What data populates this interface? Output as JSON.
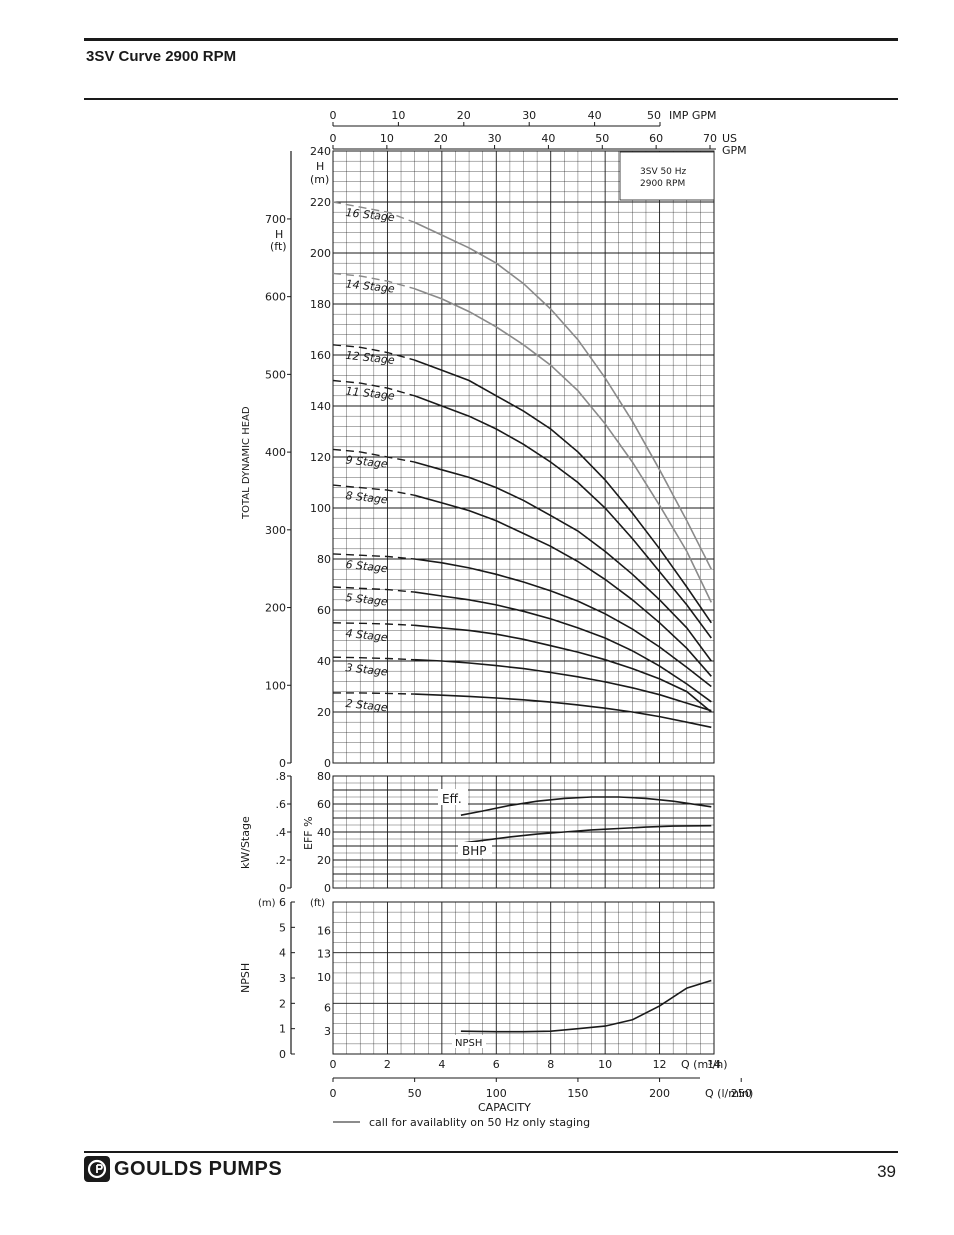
{
  "header": {
    "title": "3SV Curve 2900 RPM"
  },
  "footer": {
    "brand": "GOULDS PUMPS",
    "page_number": "39"
  },
  "chart_data": {
    "type": "line",
    "model_box": {
      "line1": "3SV  50 Hz",
      "line2": "2900 RPM"
    },
    "top_axes": {
      "imp_gpm": {
        "ticks": [
          "0",
          "10",
          "20",
          "30",
          "40",
          "50"
        ],
        "label": "IMP GPM",
        "range": [
          0,
          50
        ]
      },
      "us_gpm": {
        "ticks": [
          "0",
          "10",
          "20",
          "30",
          "40",
          "50",
          "60",
          "70"
        ],
        "label_line1": "US",
        "label_line2": "GPM",
        "range": [
          0,
          70
        ]
      }
    },
    "head_chart": {
      "ylabel_side": "TOTAL DYNAMIC HEAD",
      "y_m": {
        "unit_line1": "H",
        "unit_line2": "(m)",
        "ticks": [
          "0",
          "20",
          "40",
          "60",
          "80",
          "100",
          "120",
          "140",
          "160",
          "180",
          "200",
          "220",
          "240"
        ],
        "range": [
          0,
          240
        ]
      },
      "y_ft": {
        "unit_line1": "H",
        "unit_line2": "(ft)",
        "ticks": [
          "0",
          "100",
          "200",
          "300",
          "400",
          "500",
          "600",
          "700"
        ]
      },
      "x_range_m3h": [
        0,
        14
      ],
      "series": [
        {
          "name": "16 Stage",
          "color": "#8a8a8a",
          "x": [
            0,
            1,
            2,
            3,
            4,
            5,
            6,
            7,
            8,
            9,
            10,
            11,
            12,
            13,
            13.9
          ],
          "y": [
            220,
            218,
            216,
            212,
            207,
            202,
            196,
            188,
            178,
            166,
            151,
            134,
            115,
            95,
            76
          ]
        },
        {
          "name": "14 Stage",
          "color": "#8a8a8a",
          "x": [
            0,
            1,
            2,
            3,
            4,
            5,
            6,
            7,
            8,
            9,
            10,
            11,
            12,
            13,
            13.9
          ],
          "y": [
            192,
            191,
            189,
            186,
            182,
            177,
            171,
            164,
            156,
            146,
            133,
            118,
            101,
            83,
            63
          ]
        },
        {
          "name": "12 Stage",
          "color": "#1a1a1a",
          "x": [
            0,
            1,
            2,
            3,
            4,
            5,
            6,
            7,
            8,
            9,
            10,
            11,
            12,
            13,
            13.9
          ],
          "y": [
            164,
            163,
            161,
            158,
            154,
            150,
            144,
            138,
            131,
            122,
            111,
            98,
            84,
            69,
            55
          ]
        },
        {
          "name": "11 Stage",
          "color": "#1a1a1a",
          "x": [
            0,
            1,
            2,
            3,
            4,
            5,
            6,
            7,
            8,
            9,
            10,
            11,
            12,
            13,
            13.9
          ],
          "y": [
            150,
            149,
            147,
            144,
            140,
            136,
            131,
            125,
            118,
            110,
            100,
            88,
            75,
            62,
            49
          ]
        },
        {
          "name": "9 Stage",
          "color": "#1a1a1a",
          "x": [
            0,
            1,
            2,
            3,
            4,
            5,
            6,
            7,
            8,
            9,
            10,
            11,
            12,
            13,
            13.9
          ],
          "y": [
            123,
            122,
            120,
            118,
            115,
            112,
            108,
            103,
            97,
            91,
            83,
            74,
            64,
            53,
            40
          ]
        },
        {
          "name": "8 Stage",
          "color": "#1a1a1a",
          "x": [
            0,
            1,
            2,
            3,
            4,
            5,
            6,
            7,
            8,
            9,
            10,
            11,
            12,
            13,
            13.9
          ],
          "y": [
            109,
            108,
            107,
            105,
            102,
            99,
            95,
            90,
            85,
            79,
            72,
            64,
            55,
            45,
            34
          ]
        },
        {
          "name": "6 Stage",
          "color": "#1a1a1a",
          "x": [
            0,
            1,
            2,
            3,
            4,
            5,
            6,
            7,
            8,
            9,
            10,
            11,
            12,
            13,
            13.9
          ],
          "y": [
            82,
            81.5,
            81,
            80,
            78.5,
            76.5,
            74,
            71,
            67.5,
            63.5,
            58.5,
            52.5,
            45.5,
            37.5,
            30
          ]
        },
        {
          "name": "5 Stage",
          "color": "#1a1a1a",
          "x": [
            0,
            1,
            2,
            3,
            4,
            5,
            6,
            7,
            8,
            9,
            10,
            11,
            12,
            13,
            13.9
          ],
          "y": [
            69,
            68.5,
            68,
            67,
            65.5,
            64,
            62,
            59.5,
            56.5,
            53,
            49,
            44,
            38,
            31,
            24
          ]
        },
        {
          "name": "4 Stage",
          "color": "#1a1a1a",
          "x": [
            0,
            1,
            2,
            3,
            4,
            5,
            6,
            7,
            8,
            9,
            10,
            11,
            12,
            13,
            13.9
          ],
          "y": [
            55,
            54.8,
            54.5,
            54,
            53,
            52,
            50.5,
            48.5,
            46,
            43.5,
            40.5,
            37,
            33,
            28,
            20
          ]
        },
        {
          "name": "3 Stage",
          "color": "#1a1a1a",
          "x": [
            0,
            1,
            2,
            3,
            4,
            5,
            6,
            7,
            8,
            9,
            10,
            11,
            12,
            13,
            13.9
          ],
          "y": [
            41.5,
            41.3,
            41,
            40.5,
            40,
            39.2,
            38.2,
            37,
            35.5,
            33.8,
            31.8,
            29.5,
            26.8,
            23.5,
            20.5
          ]
        },
        {
          "name": "2 Stage",
          "color": "#1a1a1a",
          "x": [
            0,
            1,
            2,
            3,
            4,
            5,
            6,
            7,
            8,
            9,
            10,
            11,
            12,
            13,
            13.9
          ],
          "y": [
            27.5,
            27.5,
            27.3,
            27,
            26.6,
            26.1,
            25.5,
            24.8,
            23.9,
            22.8,
            21.5,
            20,
            18.2,
            16,
            14
          ]
        }
      ]
    },
    "eff_chart": {
      "y_eff": {
        "label": "EFF %",
        "ticks": [
          "0",
          "20",
          "40",
          "60",
          "80"
        ],
        "range": [
          0,
          80
        ]
      },
      "y_kw": {
        "label": "kW/Stage",
        "ticks": [
          "0",
          ".2",
          ".4",
          ".6",
          ".8"
        ],
        "range": [
          0,
          0.8
        ]
      },
      "series": [
        {
          "name": "Eff.",
          "x": [
            4.7,
            5.5,
            6.5,
            7.5,
            8.5,
            9.5,
            10.5,
            11.5,
            12.5,
            13.9
          ],
          "y": [
            52,
            55,
            59,
            62,
            64,
            65,
            65,
            64,
            62,
            58
          ]
        },
        {
          "name": "BHP",
          "x": [
            4.7,
            5.5,
            6.5,
            7.5,
            8.5,
            9.5,
            10.5,
            11.5,
            12.5,
            13.9
          ],
          "y": [
            32,
            34,
            36.5,
            38.5,
            40,
            41.5,
            42.5,
            43.5,
            44.2,
            44.5
          ]
        }
      ]
    },
    "npsh_chart": {
      "ylabel": "NPSH",
      "y_m": {
        "unit": "(m)",
        "ticks": [
          "0",
          "1",
          "2",
          "3",
          "4",
          "5",
          "6"
        ],
        "range": [
          0,
          6
        ]
      },
      "y_ft": {
        "unit": "(ft)",
        "ticks": [
          "3",
          "6",
          "10",
          "13",
          "16"
        ]
      },
      "series": [
        {
          "name": "NPSH",
          "x": [
            4.7,
            6,
            7,
            8,
            9,
            10,
            11,
            12,
            13,
            13.9
          ],
          "y": [
            0.9,
            0.88,
            0.88,
            0.9,
            1.0,
            1.1,
            1.35,
            1.9,
            2.6,
            2.9
          ]
        }
      ]
    },
    "x_m3h": {
      "ticks": [
        "0",
        "2",
        "4",
        "6",
        "8",
        "10",
        "12",
        "14"
      ],
      "label": "Q (m³/h)",
      "range": [
        0,
        14
      ]
    },
    "x_lmin": {
      "ticks": [
        "0",
        "50",
        "100",
        "150",
        "200",
        "250"
      ],
      "label": "Q (l/min)"
    },
    "x_title": "CAPACITY",
    "legend_note": "call for availablity on 50 Hz only staging"
  }
}
